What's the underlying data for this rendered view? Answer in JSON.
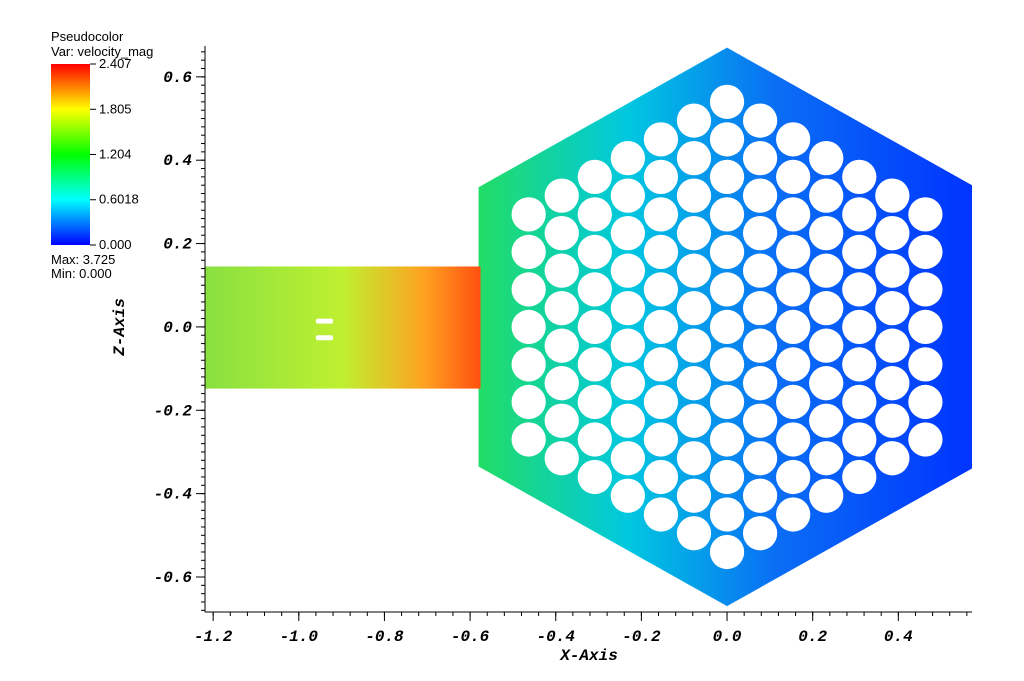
{
  "chart_data": {
    "type": "pseudocolor",
    "legend_title": "Pseudocolor",
    "variable": "Var: velocity_mag",
    "max_label": "Max:  3.725",
    "min_label": "Min:  0.000",
    "xlabel": "X-Axis",
    "ylabel": "Z-Axis",
    "xlim": [
      -1.219,
      0.572
    ],
    "ylim": [
      -0.684,
      0.674
    ],
    "xticks": [
      -1.2,
      {
        "value": -1.0,
        "label": "-1.0"
      },
      -0.8,
      -0.6,
      -0.4,
      -0.2,
      {
        "value": 0,
        "label": "0.0"
      },
      0.2,
      0.4
    ],
    "yticks": [
      -0.6,
      -0.4,
      -0.2,
      {
        "value": 0,
        "label": "0.0"
      },
      0.2,
      0.4,
      0.6
    ],
    "colorbar": {
      "ticks": [
        {
          "value": 0,
          "label": "0.000"
        },
        0.6018,
        1.204,
        1.805,
        2.407
      ],
      "colors": [
        "#0000ff",
        "#00ffff",
        "#00ff00",
        "#ffff00",
        "#ff0000"
      ]
    }
  }
}
